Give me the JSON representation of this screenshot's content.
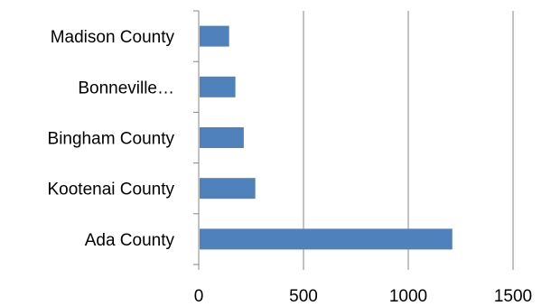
{
  "chart_data": {
    "type": "bar",
    "orientation": "horizontal",
    "title": "",
    "xlabel": "",
    "ylabel": "",
    "categories": [
      "Ada County",
      "Kootenai County",
      "Bingham County",
      "Bonneville…",
      "Madison County"
    ],
    "values": [
      1210,
      270,
      215,
      175,
      145
    ],
    "xlim": [
      0,
      1500
    ],
    "xticks": [
      "0",
      "500",
      "1000",
      "1500"
    ],
    "grid": "vertical",
    "legend": "none",
    "bar_color": "#4F81BD"
  }
}
